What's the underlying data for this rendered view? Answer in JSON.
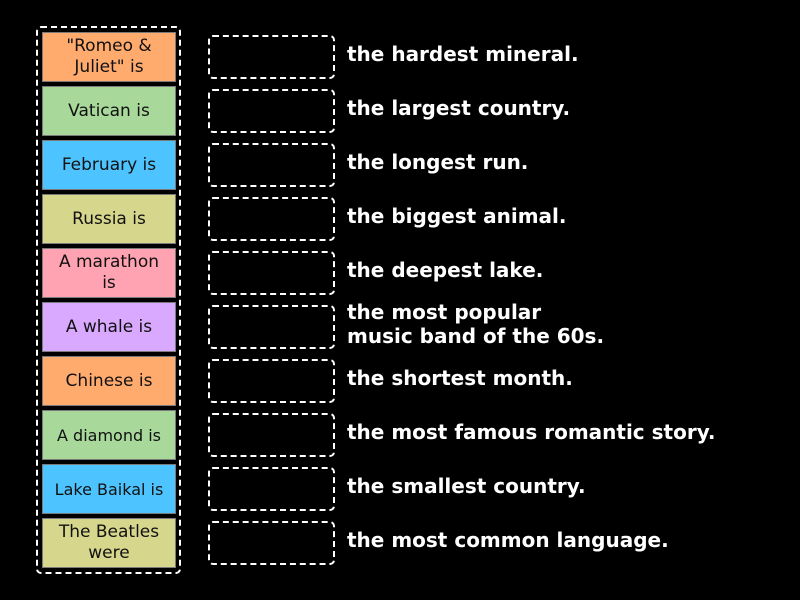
{
  "tiles": [
    {
      "label": "\"Romeo & Juliet\" is",
      "color": "#ffab6e"
    },
    {
      "label": "Vatican is",
      "color": "#a8d99a"
    },
    {
      "label": "February is",
      "color": "#4dc4ff"
    },
    {
      "label": "Russia is",
      "color": "#d6d68c"
    },
    {
      "label": "A marathon is",
      "color": "#ffa2b2"
    },
    {
      "label": "A whale is",
      "color": "#d9a8ff"
    },
    {
      "label": "Chinese is",
      "color": "#ffab6e"
    },
    {
      "label": "A diamond is",
      "color": "#a8d99a"
    },
    {
      "label": "Lake Baikal is",
      "color": "#4dc4ff"
    },
    {
      "label": "The Beatles were",
      "color": "#d6d68c"
    }
  ],
  "clues": [
    {
      "text": "the hardest mineral."
    },
    {
      "text": "the largest country."
    },
    {
      "text": "the longest run."
    },
    {
      "text": "the biggest animal."
    },
    {
      "text": "the deepest lake."
    },
    {
      "text": "the most popular\nmusic band of the 60s."
    },
    {
      "text": "the shortest month."
    },
    {
      "text": "the most famous romantic story."
    },
    {
      "text": "the smallest country."
    },
    {
      "text": "the most common language."
    }
  ]
}
